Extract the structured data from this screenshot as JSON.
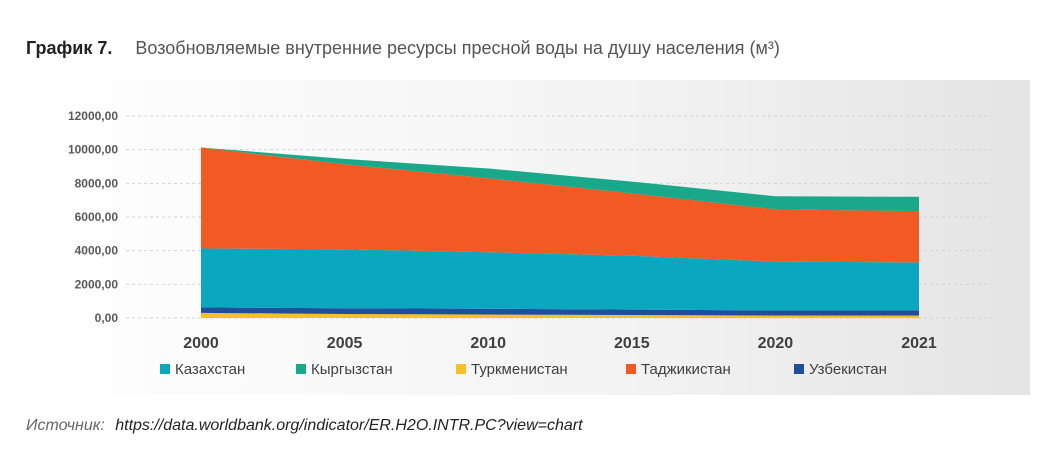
{
  "heading": {
    "label": "График 7.",
    "title": "Возобновляемые внутренние ресурсы пресной воды на душу населения (м³)"
  },
  "source": {
    "label": "Источник:",
    "url": "https://data.worldbank.org/indicator/ER.H2O.INTR.PC?view=chart"
  },
  "chart_data": {
    "type": "area",
    "stacked": true,
    "categories": [
      "2000",
      "2005",
      "2010",
      "2015",
      "2020",
      "2021"
    ],
    "y_ticks": [
      "0,00",
      "2000,00",
      "4000,00",
      "6000,00",
      "8000,00",
      "10000,00",
      "12000,00"
    ],
    "ylim": [
      0,
      12000
    ],
    "grid": "horizontal",
    "legend_position": "bottom",
    "series": [
      {
        "name": "Туркменистан",
        "color": "#f5c02a",
        "values": [
          300,
          240,
          210,
          180,
          150,
          150
        ]
      },
      {
        "name": "Узбекистан",
        "color": "#1f4e9c",
        "values": [
          330,
          340,
          340,
          320,
          300,
          300
        ]
      },
      {
        "name": "Казахстан",
        "color": "#0aa7be",
        "values": [
          3500,
          3500,
          3350,
          3200,
          2900,
          2850
        ]
      },
      {
        "name": "Таджикистан",
        "color": "#f15a22",
        "values": [
          6000,
          5050,
          4400,
          3700,
          3100,
          3050
        ]
      },
      {
        "name": "Кыргызстан",
        "color": "#19a98a",
        "values": [
          0,
          320,
          580,
          700,
          780,
          850
        ]
      }
    ],
    "legend_order": [
      "Казахстан",
      "Кыргызстан",
      "Туркменистан",
      "Таджикистан",
      "Узбекистан"
    ]
  }
}
